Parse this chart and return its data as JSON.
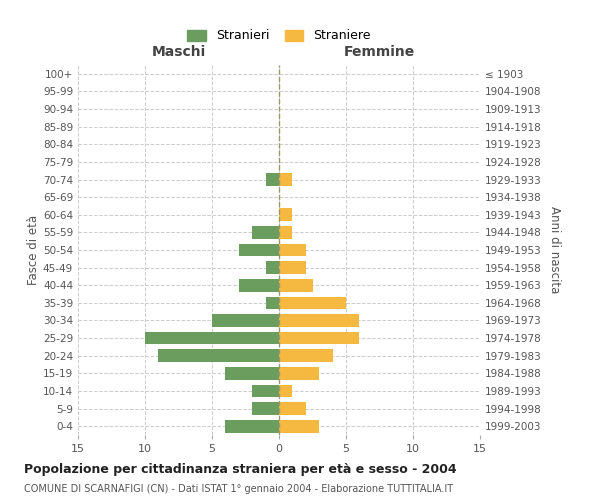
{
  "age_groups": [
    "100+",
    "95-99",
    "90-94",
    "85-89",
    "80-84",
    "75-79",
    "70-74",
    "65-69",
    "60-64",
    "55-59",
    "50-54",
    "45-49",
    "40-44",
    "35-39",
    "30-34",
    "25-29",
    "20-24",
    "15-19",
    "10-14",
    "5-9",
    "0-4"
  ],
  "birth_years": [
    "≤ 1903",
    "1904-1908",
    "1909-1913",
    "1914-1918",
    "1919-1923",
    "1924-1928",
    "1929-1933",
    "1934-1938",
    "1939-1943",
    "1944-1948",
    "1949-1953",
    "1954-1958",
    "1959-1963",
    "1964-1968",
    "1969-1973",
    "1974-1978",
    "1979-1983",
    "1984-1988",
    "1989-1993",
    "1994-1998",
    "1999-2003"
  ],
  "males": [
    0,
    0,
    0,
    0,
    0,
    0,
    1,
    0,
    0,
    2,
    3,
    1,
    3,
    1,
    5,
    10,
    9,
    4,
    2,
    2,
    4
  ],
  "females": [
    0,
    0,
    0,
    0,
    0,
    0,
    1,
    0,
    1,
    1,
    2,
    2,
    2.5,
    5,
    6,
    6,
    4,
    3,
    1,
    2,
    3
  ],
  "male_color": "#6b9e5e",
  "female_color": "#f5b942",
  "title": "Popolazione per cittadinanza straniera per età e sesso - 2004",
  "subtitle": "COMUNE DI SCARNAFIGI (CN) - Dati ISTAT 1° gennaio 2004 - Elaborazione TUTTITALIA.IT",
  "xlabel_left": "Maschi",
  "xlabel_right": "Femmine",
  "ylabel_left": "Fasce di età",
  "ylabel_right": "Anni di nascita",
  "legend_stranieri": "Stranieri",
  "legend_straniere": "Straniere",
  "xlim": 15,
  "background_color": "#ffffff",
  "grid_color": "#cccccc"
}
